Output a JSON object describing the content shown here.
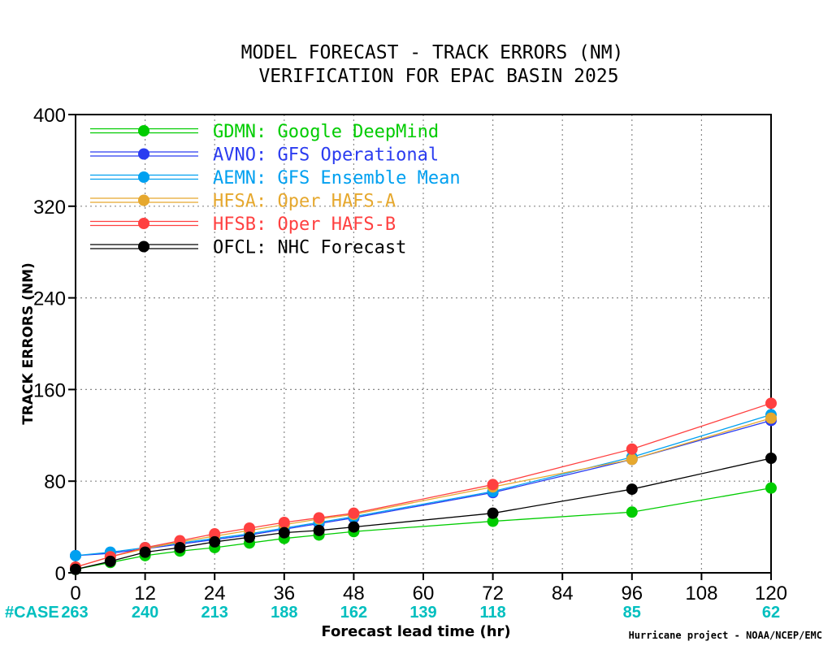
{
  "chart_data": {
    "type": "line",
    "title": [
      "MODEL FORECAST - TRACK ERRORS (NM)",
      "VERIFICATION FOR EPAC BASIN 2025"
    ],
    "xlabel": "Forecast lead time (hr)",
    "ylabel": "TRACK ERRORS (NM)",
    "x_ticks": [
      "0",
      "12",
      "24",
      "36",
      "48",
      "60",
      "72",
      "84",
      "96",
      "108",
      "120"
    ],
    "y_ticks": [
      "0",
      "80",
      "160",
      "240",
      "320",
      "400"
    ],
    "xlim": [
      0,
      120
    ],
    "ylim": [
      0,
      400
    ],
    "grid": true,
    "legend_position": "top-left",
    "case_label": "#CASE",
    "case_counts": [
      {
        "x": 0,
        "label": "263"
      },
      {
        "x": 12,
        "label": "240"
      },
      {
        "x": 24,
        "label": "213"
      },
      {
        "x": 36,
        "label": "188"
      },
      {
        "x": 48,
        "label": "162"
      },
      {
        "x": 60,
        "label": "139"
      },
      {
        "x": 72,
        "label": "118"
      },
      {
        "x": 96,
        "label": "85"
      },
      {
        "x": 120,
        "label": "62"
      }
    ],
    "credit": "Hurricane project - NOAA/NCEP/EMC",
    "x": [
      0,
      6,
      12,
      18,
      24,
      30,
      36,
      42,
      48,
      72,
      96,
      120
    ],
    "series": [
      {
        "name": "GDMN: Google DeepMind",
        "color": "#00cc00",
        "values": [
          3,
          9,
          15,
          19,
          22,
          26,
          30,
          33,
          36,
          45,
          53,
          74
        ]
      },
      {
        "name": "AVNO: GFS Operational",
        "color": "#2b3cf0",
        "values": [
          15,
          17,
          21,
          25,
          29,
          33,
          38,
          43,
          48,
          70,
          99,
          133
        ]
      },
      {
        "name": "AEMN: GFS Ensemble Mean",
        "color": "#00a0f0",
        "values": [
          15,
          18,
          22,
          26,
          30,
          34,
          39,
          44,
          49,
          71,
          101,
          138
        ]
      },
      {
        "name": "HFSA: Oper HAFS-A",
        "color": "#e6a82e",
        "values": [
          5,
          14,
          21,
          27,
          32,
          37,
          42,
          47,
          51,
          75,
          99,
          135
        ]
      },
      {
        "name": "HFSB: Oper HAFS-B",
        "color": "#ff4040",
        "values": [
          5,
          14,
          22,
          28,
          34,
          39,
          44,
          48,
          52,
          77,
          108,
          148
        ]
      },
      {
        "name": "OFCL: NHC Forecast",
        "color": "#000000",
        "values": [
          3,
          10,
          18,
          22,
          27,
          31,
          35,
          37,
          40,
          52,
          73,
          100
        ]
      }
    ]
  }
}
